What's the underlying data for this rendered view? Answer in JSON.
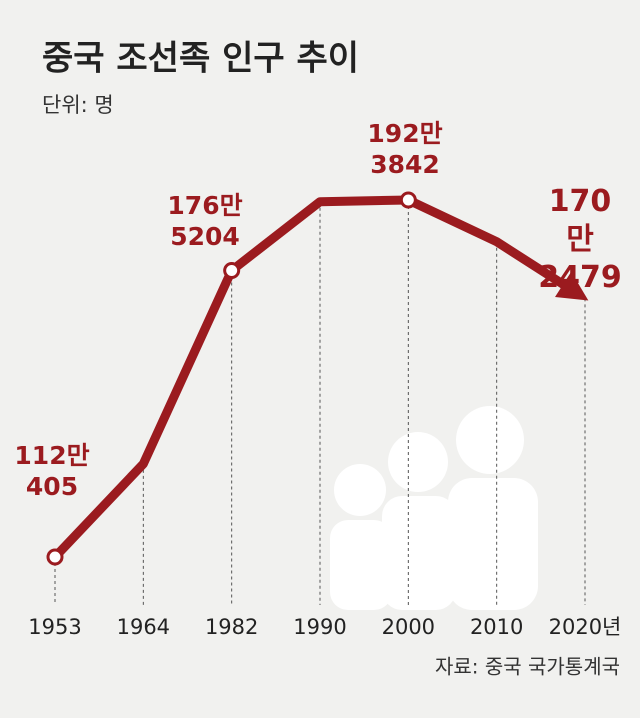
{
  "title": "중국 조선족 인구 추이",
  "subtitle": "단위: 명",
  "source": "자료: 중국 국가통계국",
  "chart_data": {
    "type": "line",
    "categories": [
      "1953",
      "1964",
      "1982",
      "1990",
      "2000",
      "2010",
      "2020년"
    ],
    "values": [
      1120405,
      1330000,
      1765204,
      1920000,
      1923842,
      1830000,
      1702479
    ],
    "value_labels": [
      "112만\n405",
      null,
      "176만\n5204",
      null,
      "192만\n3842",
      null,
      "170만\n2479"
    ],
    "color": "#9b1b1f"
  }
}
